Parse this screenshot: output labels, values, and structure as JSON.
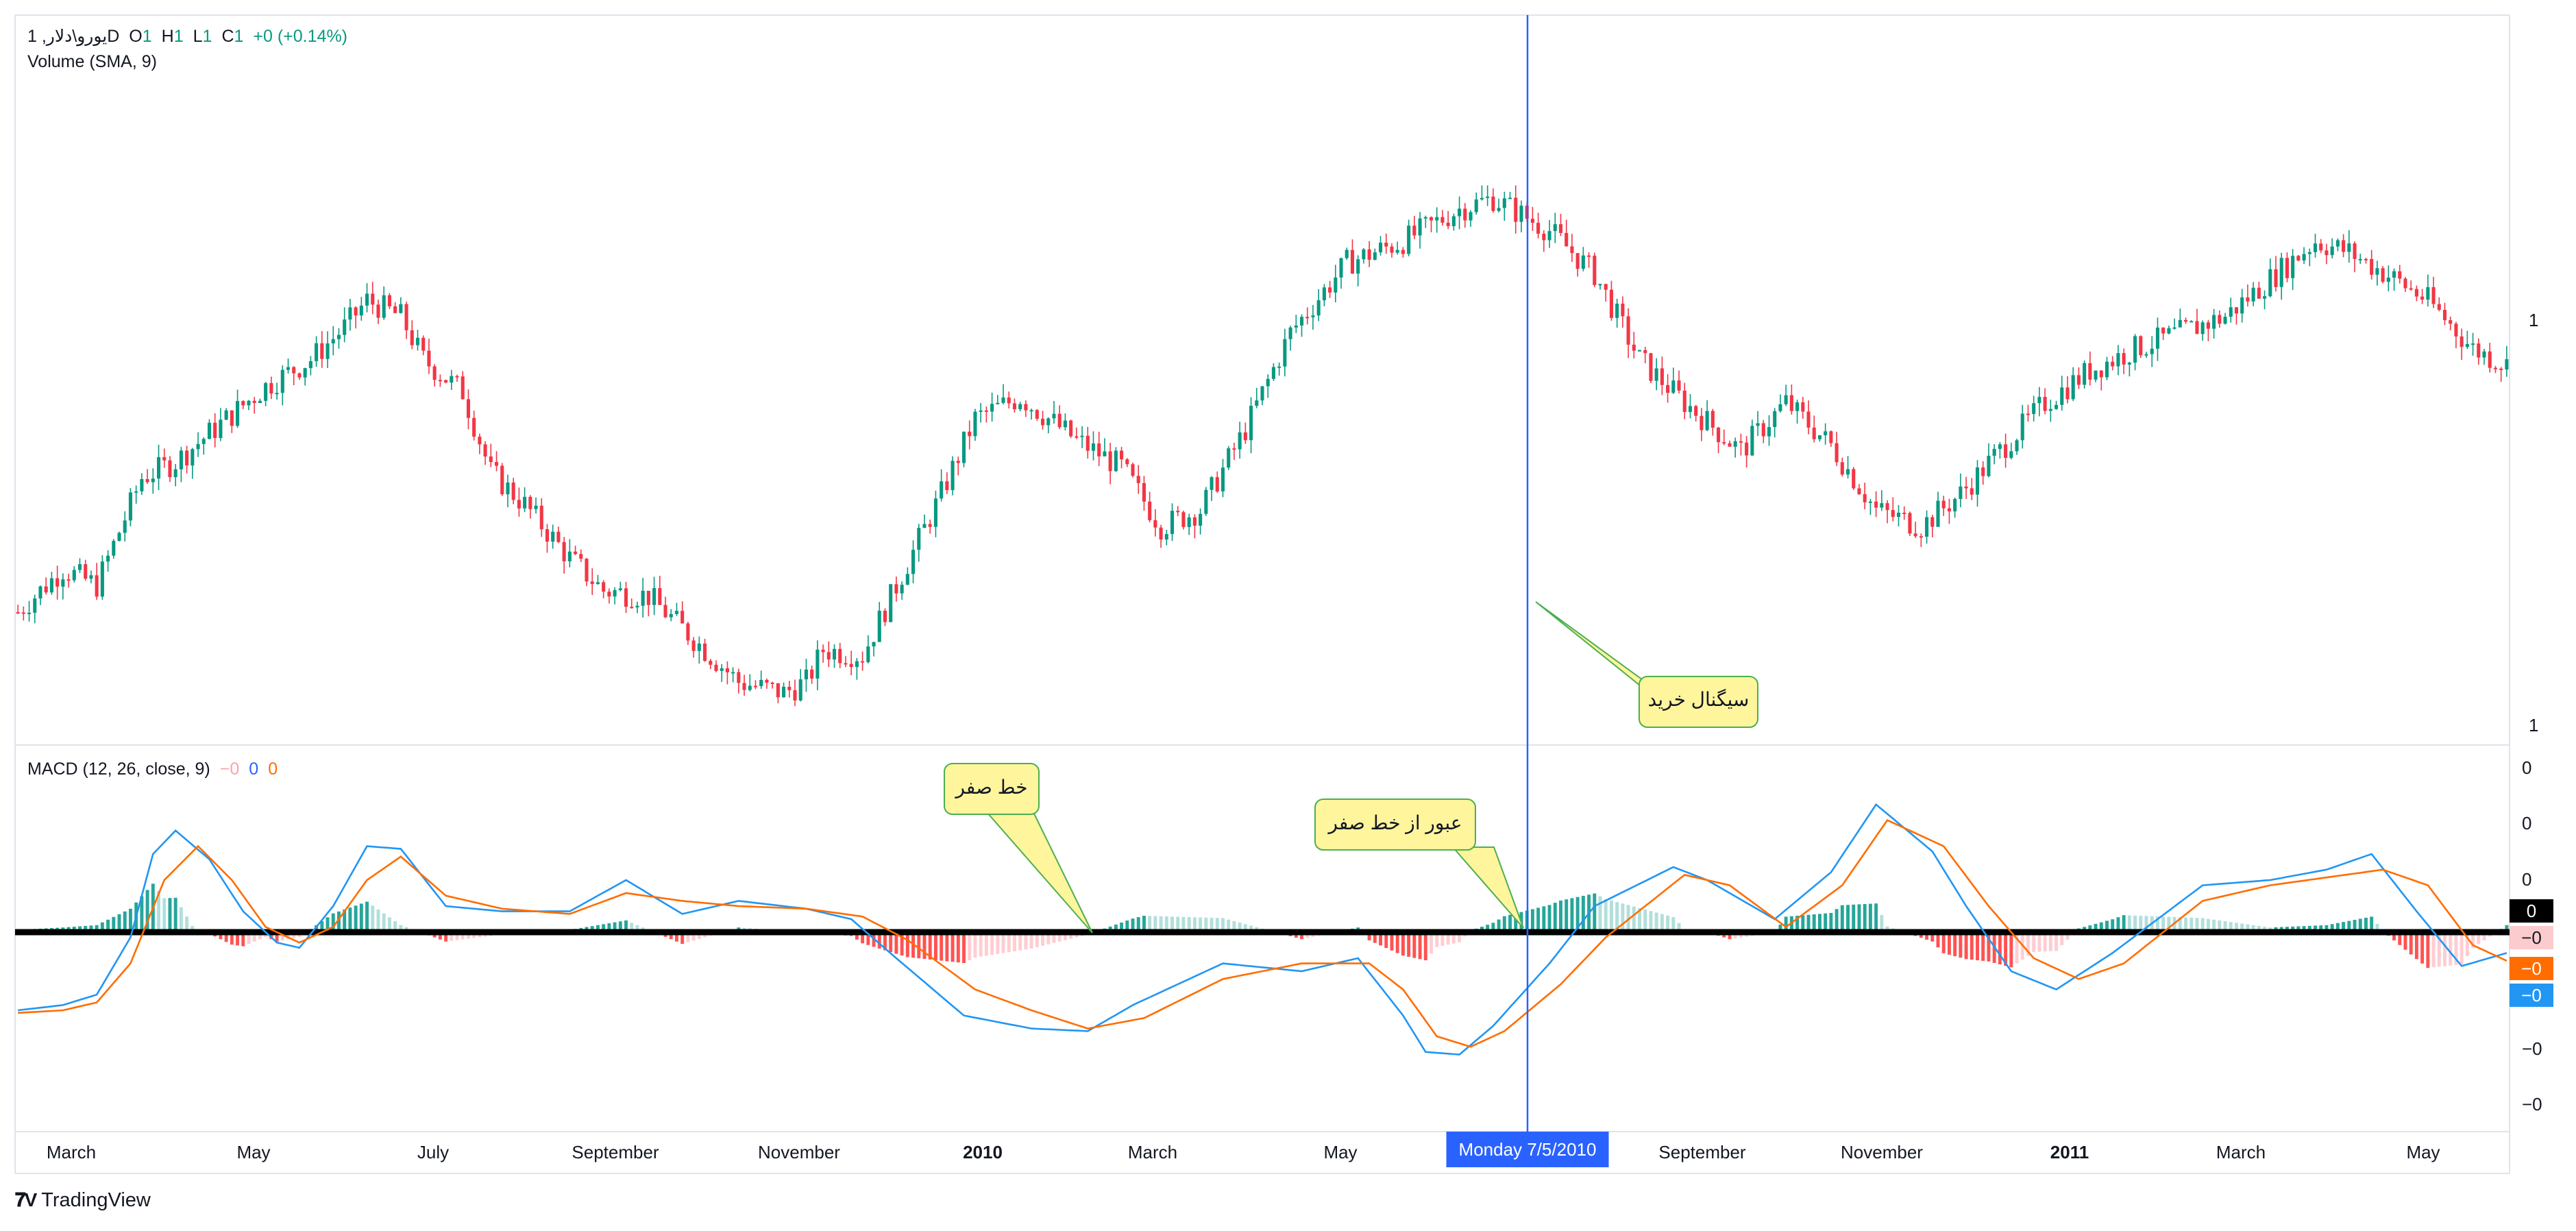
{
  "chart_data": [
    {
      "type": "candlestick",
      "title": "",
      "symbol": "يورو\\دلار, 1D",
      "ohlc": {
        "o_label": "O",
        "o": "1",
        "h_label": "H",
        "h": "1",
        "l_label": "L",
        "l": "1",
        "c_label": "C",
        "c": "1",
        "change": "+0 (+0.14%)"
      },
      "indicator": "Volume (SMA, 9)",
      "price_labels": {
        "current": "1",
        "axis_bottom": "1"
      },
      "x_ticks": [
        "March",
        "May",
        "July",
        "September",
        "November",
        "2010",
        "March",
        "May",
        "Monday 7/5/2010",
        "September",
        "November",
        "2011",
        "March",
        "May"
      ],
      "bold_ticks": [
        "2010",
        "2011"
      ],
      "highlighted_tick": "Monday 7/5/2010",
      "colors": {
        "up": "#089981",
        "down": "#f23645",
        "crosshair": "#2962ff"
      },
      "price_path": [
        [
          0,
          1.18
        ],
        [
          8,
          1.26
        ],
        [
          14,
          1.23
        ],
        [
          22,
          1.43
        ],
        [
          28,
          1.46
        ],
        [
          36,
          1.53
        ],
        [
          44,
          1.6
        ],
        [
          52,
          1.65
        ],
        [
          58,
          1.71
        ],
        [
          62,
          1.76
        ],
        [
          68,
          1.73
        ],
        [
          72,
          1.65
        ],
        [
          79,
          1.59
        ],
        [
          84,
          1.44
        ],
        [
          90,
          1.38
        ],
        [
          98,
          1.28
        ],
        [
          104,
          1.22
        ],
        [
          112,
          1.21
        ],
        [
          120,
          1.13
        ],
        [
          128,
          1.05
        ],
        [
          136,
          1.03
        ],
        [
          140,
          1.05
        ],
        [
          143,
          1.11
        ],
        [
          150,
          1.1
        ],
        [
          157,
          1.25
        ],
        [
          164,
          1.4
        ],
        [
          170,
          1.54
        ],
        [
          178,
          1.58
        ],
        [
          188,
          1.5
        ],
        [
          196,
          1.45
        ],
        [
          203,
          1.34
        ],
        [
          210,
          1.37
        ],
        [
          218,
          1.52
        ],
        [
          226,
          1.7
        ],
        [
          236,
          1.83
        ],
        [
          246,
          1.87
        ],
        [
          256,
          1.93
        ],
        [
          262,
          1.95
        ],
        [
          272,
          1.89
        ],
        [
          280,
          1.81
        ],
        [
          288,
          1.65
        ],
        [
          296,
          1.57
        ],
        [
          306,
          1.48
        ],
        [
          314,
          1.57
        ],
        [
          322,
          1.49
        ],
        [
          330,
          1.37
        ],
        [
          338,
          1.34
        ],
        [
          345,
          1.4
        ],
        [
          352,
          1.48
        ],
        [
          360,
          1.57
        ],
        [
          368,
          1.63
        ],
        [
          376,
          1.67
        ],
        [
          384,
          1.7
        ],
        [
          392,
          1.73
        ],
        [
          400,
          1.8
        ],
        [
          408,
          1.87
        ],
        [
          414,
          1.85
        ],
        [
          422,
          1.8
        ],
        [
          428,
          1.76
        ],
        [
          436,
          1.67
        ],
        [
          442,
          1.64
        ]
      ],
      "candle_count": 443,
      "annotations": [
        {
          "text": "سيگنال خريد"
        }
      ]
    },
    {
      "type": "line",
      "title": "",
      "indicator": "MACD (12, 26, close, 9)",
      "legend_values": [
        {
          "value": "−0",
          "color": "#f7a5ab"
        },
        {
          "value": "0",
          "color": "#2962ff"
        },
        {
          "value": "0",
          "color": "#ff6d00"
        }
      ],
      "y_axis_labels": [
        "0",
        "0",
        "0",
        "−0",
        "−0"
      ],
      "value_tags": [
        {
          "value": "0",
          "bg": "#000000",
          "fg": "#ffffff"
        },
        {
          "value": "−0",
          "bg": "#fccbcd",
          "fg": "#131722"
        },
        {
          "value": "−0",
          "bg": "#ff6d00",
          "fg": "#ffffff"
        },
        {
          "value": "−0",
          "bg": "#2196f3",
          "fg": "#ffffff"
        }
      ],
      "series": [
        {
          "name": "MACD",
          "color": "#2196f3",
          "path": [
            [
              0,
              -0.3
            ],
            [
              8,
              -0.28
            ],
            [
              14,
              -0.24
            ],
            [
              20,
              -0.02
            ],
            [
              24,
              0.3
            ],
            [
              28,
              0.39
            ],
            [
              34,
              0.28
            ],
            [
              40,
              0.08
            ],
            [
              46,
              -0.04
            ],
            [
              50,
              -0.06
            ],
            [
              56,
              0.1
            ],
            [
              62,
              0.33
            ],
            [
              68,
              0.32
            ],
            [
              76,
              0.1
            ],
            [
              86,
              0.08
            ],
            [
              98,
              0.08
            ],
            [
              108,
              0.2
            ],
            [
              118,
              0.07
            ],
            [
              128,
              0.12
            ],
            [
              140,
              0.09
            ],
            [
              148,
              0.05
            ],
            [
              156,
              -0.1
            ],
            [
              168,
              -0.32
            ],
            [
              180,
              -0.37
            ],
            [
              190,
              -0.38
            ],
            [
              198,
              -0.28
            ],
            [
              214,
              -0.12
            ],
            [
              228,
              -0.15
            ],
            [
              238,
              -0.1
            ],
            [
              246,
              -0.32
            ],
            [
              250,
              -0.46
            ],
            [
              256,
              -0.47
            ],
            [
              262,
              -0.36
            ],
            [
              272,
              -0.12
            ],
            [
              280,
              0.1
            ],
            [
              294,
              0.25
            ],
            [
              300,
              0.2
            ],
            [
              312,
              0.05
            ],
            [
              322,
              0.23
            ],
            [
              330,
              0.49
            ],
            [
              340,
              0.31
            ],
            [
              346,
              0.1
            ],
            [
              354,
              -0.15
            ],
            [
              362,
              -0.22
            ],
            [
              372,
              -0.08
            ],
            [
              388,
              0.18
            ],
            [
              400,
              0.2
            ],
            [
              410,
              0.24
            ],
            [
              418,
              0.3
            ],
            [
              426,
              0.08
            ],
            [
              434,
              -0.13
            ],
            [
              442,
              -0.08
            ]
          ]
        },
        {
          "name": "Signal",
          "color": "#ff6d00",
          "path": [
            [
              0,
              -0.31
            ],
            [
              8,
              -0.3
            ],
            [
              14,
              -0.27
            ],
            [
              20,
              -0.12
            ],
            [
              26,
              0.2
            ],
            [
              32,
              0.33
            ],
            [
              38,
              0.2
            ],
            [
              44,
              0.02
            ],
            [
              50,
              -0.04
            ],
            [
              56,
              0.02
            ],
            [
              62,
              0.2
            ],
            [
              68,
              0.29
            ],
            [
              76,
              0.14
            ],
            [
              86,
              0.09
            ],
            [
              98,
              0.07
            ],
            [
              108,
              0.15
            ],
            [
              118,
              0.12
            ],
            [
              128,
              0.1
            ],
            [
              140,
              0.09
            ],
            [
              150,
              0.06
            ],
            [
              158,
              -0.03
            ],
            [
              170,
              -0.22
            ],
            [
              180,
              -0.3
            ],
            [
              190,
              -0.37
            ],
            [
              200,
              -0.33
            ],
            [
              214,
              -0.18
            ],
            [
              228,
              -0.12
            ],
            [
              240,
              -0.12
            ],
            [
              246,
              -0.22
            ],
            [
              252,
              -0.4
            ],
            [
              258,
              -0.44
            ],
            [
              264,
              -0.38
            ],
            [
              274,
              -0.2
            ],
            [
              282,
              -0.02
            ],
            [
              296,
              0.22
            ],
            [
              304,
              0.18
            ],
            [
              314,
              0.02
            ],
            [
              324,
              0.18
            ],
            [
              332,
              0.43
            ],
            [
              342,
              0.33
            ],
            [
              350,
              0.1
            ],
            [
              358,
              -0.1
            ],
            [
              366,
              -0.18
            ],
            [
              374,
              -0.12
            ],
            [
              388,
              0.12
            ],
            [
              400,
              0.18
            ],
            [
              410,
              0.21
            ],
            [
              420,
              0.24
            ],
            [
              428,
              0.18
            ],
            [
              436,
              -0.05
            ],
            [
              442,
              -0.11
            ]
          ]
        }
      ],
      "annotations": [
        {
          "text": "خط صفر"
        },
        {
          "text": "عبور از خط صفر"
        }
      ],
      "colors": {
        "hist_up_strong": "#26a69a",
        "hist_up_weak": "#b2dfdb",
        "hist_down_strong": "#ff5252",
        "hist_down_weak": "#ffcdd2",
        "zero_line": "#000000"
      }
    }
  ],
  "footer": {
    "brand": "TradingView"
  }
}
